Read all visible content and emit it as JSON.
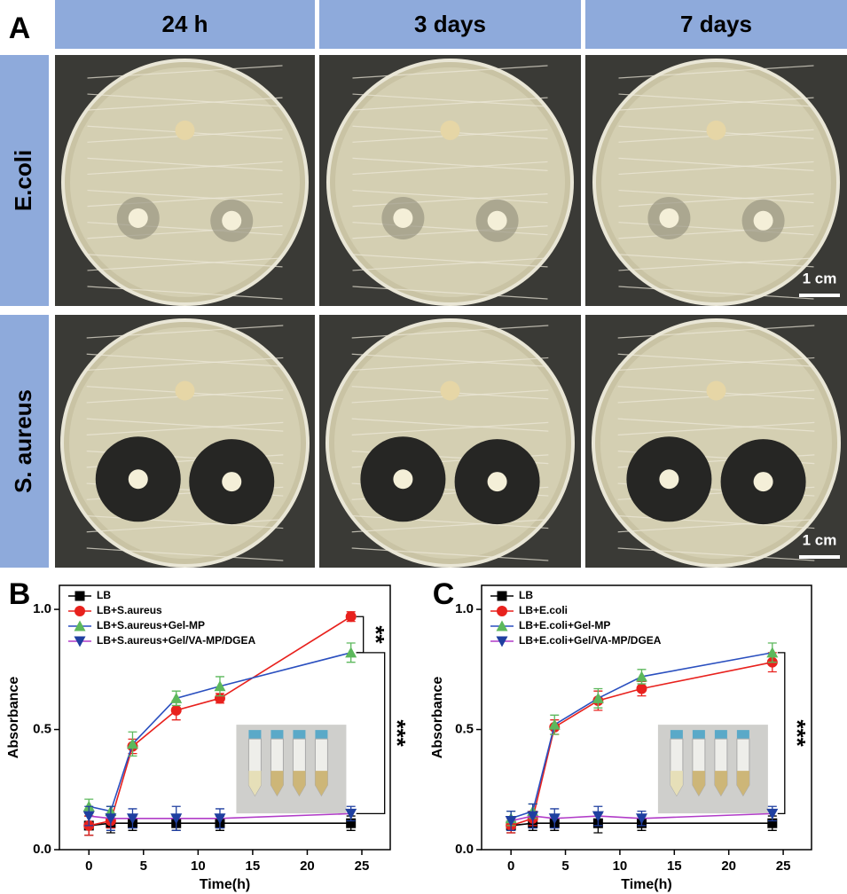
{
  "panel_a": {
    "label": "A",
    "columns": [
      "24 h",
      "3 days",
      "7 days"
    ],
    "rows": [
      "E.coli",
      "S. aureus"
    ],
    "scale_bar": "1 cm"
  },
  "chart_data": [
    {
      "type": "line",
      "panel_label": "B",
      "xlabel": "Time(h)",
      "ylabel": "Absorbance",
      "x": [
        0,
        2,
        4,
        8,
        12,
        24
      ],
      "xlim": [
        -2.7,
        27.6
      ],
      "ylim": [
        0,
        1.1
      ],
      "xticks": [
        0,
        5,
        10,
        15,
        20,
        25
      ],
      "yticks": [
        {
          "value": 0,
          "label": "0.0"
        },
        {
          "value": 0.5,
          "label": "0.5"
        },
        {
          "value": 1,
          "label": "1.0"
        }
      ],
      "legend": "upper-left",
      "series": [
        {
          "name": "LB",
          "color": "#000000",
          "marker_color": "#000000",
          "marker": "square",
          "values": [
            0.1,
            0.11,
            0.11,
            0.11,
            0.11,
            0.11
          ],
          "errors": [
            0.04,
            0.04,
            0.03,
            0.03,
            0.03,
            0.03
          ]
        },
        {
          "name": "LB+S.aureus",
          "color": "#e8211d",
          "marker_color": "#e8211d",
          "marker": "circle",
          "values": [
            0.1,
            0.12,
            0.43,
            0.58,
            0.63,
            0.97
          ],
          "errors": [
            0.04,
            0.03,
            0.03,
            0.04,
            0.02,
            0.02
          ]
        },
        {
          "name": "LB+S.aureus+Gel-MP",
          "color": "#2a4fbf",
          "marker_color": "#5cb85c",
          "marker": "triangle-up",
          "values": [
            0.18,
            0.16,
            0.44,
            0.63,
            0.68,
            0.82
          ],
          "errors": [
            0.03,
            0.02,
            0.05,
            0.03,
            0.04,
            0.04
          ]
        },
        {
          "name": "LB+S.aureus+Gel/VA-MP/DGEA",
          "color": "#b13cc8",
          "marker_color": "#1f3fa0",
          "marker": "triangle-down",
          "values": [
            0.14,
            0.13,
            0.13,
            0.13,
            0.13,
            0.15
          ],
          "errors": [
            0.04,
            0.05,
            0.04,
            0.05,
            0.04,
            0.03
          ]
        }
      ],
      "annotations": [
        {
          "text": "**",
          "series": [
            1,
            2
          ]
        },
        {
          "text": "***",
          "series": [
            2,
            3
          ]
        }
      ]
    },
    {
      "type": "line",
      "panel_label": "C",
      "xlabel": "Time(h)",
      "ylabel": "Absorbance",
      "x": [
        0,
        2,
        4,
        8,
        12,
        24
      ],
      "xlim": [
        -2.7,
        27.6
      ],
      "ylim": [
        0,
        1.1
      ],
      "xticks": [
        0,
        5,
        10,
        15,
        20,
        25
      ],
      "yticks": [
        {
          "value": 0,
          "label": "0.0"
        },
        {
          "value": 0.5,
          "label": "0.5"
        },
        {
          "value": 1,
          "label": "1.0"
        }
      ],
      "legend": "upper-left",
      "series": [
        {
          "name": "LB",
          "color": "#000000",
          "marker_color": "#000000",
          "marker": "square",
          "values": [
            0.1,
            0.11,
            0.11,
            0.11,
            0.11,
            0.11
          ],
          "errors": [
            0.03,
            0.03,
            0.03,
            0.04,
            0.03,
            0.03
          ]
        },
        {
          "name": "LB+E.coli",
          "color": "#e8211d",
          "marker_color": "#e8211d",
          "marker": "circle",
          "values": [
            0.1,
            0.13,
            0.51,
            0.62,
            0.67,
            0.78
          ],
          "errors": [
            0.03,
            0.03,
            0.03,
            0.04,
            0.03,
            0.04
          ]
        },
        {
          "name": "LB+E.coli+Gel-MP",
          "color": "#2a4fbf",
          "marker_color": "#5cb85c",
          "marker": "triangle-up",
          "values": [
            0.13,
            0.16,
            0.52,
            0.63,
            0.72,
            0.82
          ],
          "errors": [
            0.03,
            0.03,
            0.04,
            0.04,
            0.03,
            0.04
          ]
        },
        {
          "name": "LB+E.coli+Gel/VA-MP/DGEA",
          "color": "#b13cc8",
          "marker_color": "#1f3fa0",
          "marker": "triangle-down",
          "values": [
            0.12,
            0.14,
            0.13,
            0.14,
            0.13,
            0.15
          ],
          "errors": [
            0.04,
            0.05,
            0.04,
            0.04,
            0.03,
            0.03
          ]
        }
      ],
      "annotations": [
        {
          "text": "***",
          "series": [
            2,
            3
          ]
        }
      ]
    }
  ]
}
